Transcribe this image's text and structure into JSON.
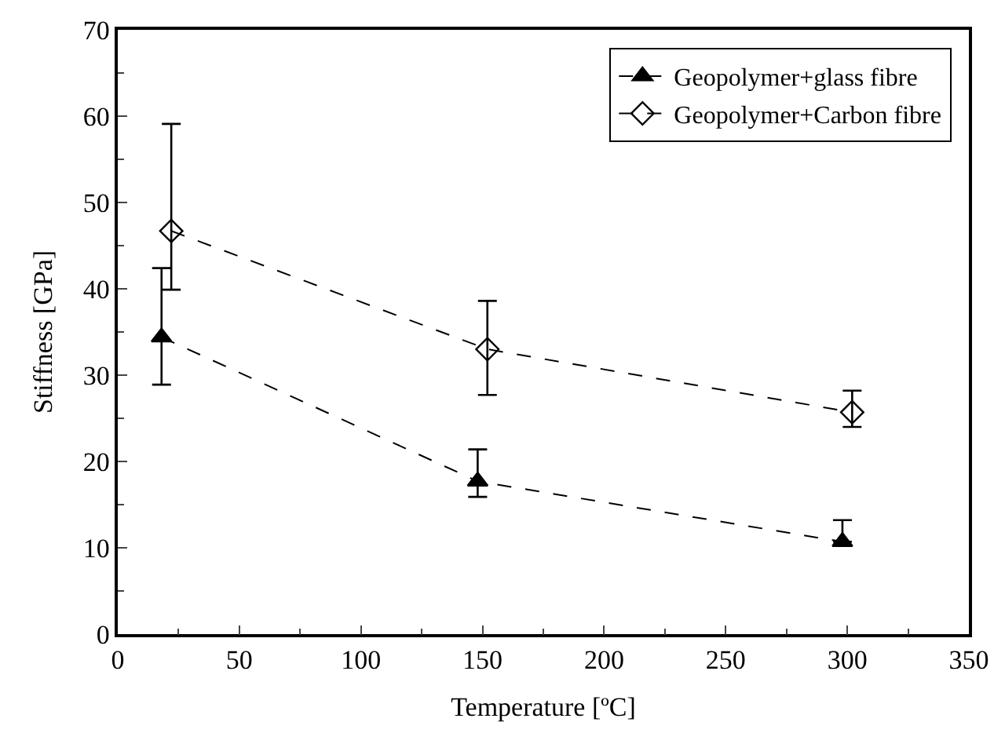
{
  "chart_data": {
    "type": "line",
    "xlabel": "Temperature [ºC]",
    "ylabel": "Stiffness [GPa]",
    "xlim": [
      0,
      350
    ],
    "xticks": [
      0,
      50,
      100,
      150,
      200,
      250,
      300,
      350
    ],
    "ylim": [
      0,
      70
    ],
    "yticks": [
      0,
      10,
      20,
      30,
      40,
      50,
      60,
      70
    ],
    "legend": "top right",
    "line_style": "dashed",
    "series": [
      {
        "name": "Geopolymer+glass fibre",
        "color": "#000000",
        "marker": "triangle",
        "x": [
          18,
          148,
          298
        ],
        "values": [
          34.4,
          17.7,
          10.7
        ],
        "errors": [
          [
            28.9,
            42.4
          ],
          [
            15.9,
            21.4
          ],
          [
            10.7,
            13.2
          ]
        ]
      },
      {
        "name": "Geopolymer+Carbon fibre",
        "color": "#000000",
        "marker": "diamond-open",
        "x": [
          22,
          152,
          302
        ],
        "values": [
          46.7,
          33.0,
          25.7
        ],
        "errors": [
          [
            39.9,
            59.1
          ],
          [
            27.7,
            38.6
          ],
          [
            24.0,
            28.2
          ]
        ]
      }
    ]
  }
}
